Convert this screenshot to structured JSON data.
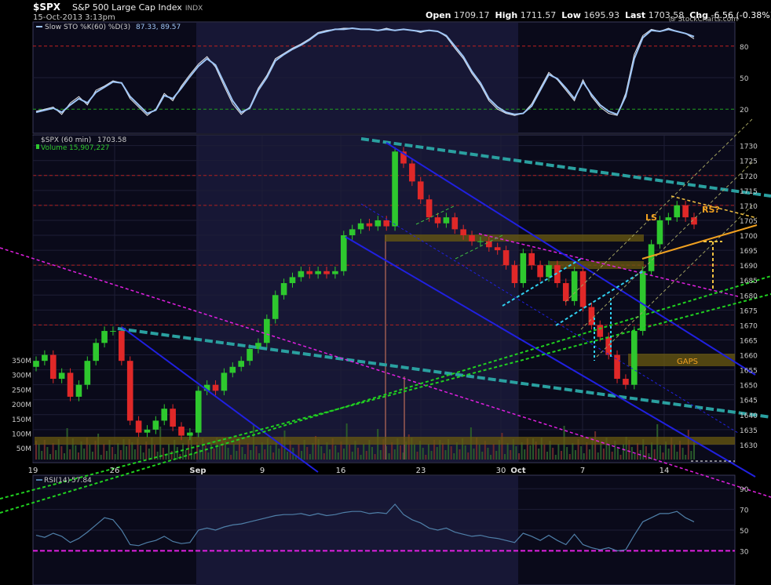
{
  "header": {
    "symbol": "$SPX",
    "name": "S&P 500 Large Cap Index",
    "exchange": "INDX",
    "datetime": "15-Oct-2013 3:13pm",
    "open_label": "Open",
    "open": "1709.17",
    "high_label": "High",
    "high": "1711.57",
    "low_label": "Low",
    "low": "1695.93",
    "last_label": "Last",
    "last": "1703.58",
    "chg_label": "Chg",
    "chg": "-6.56 (-0.38%)",
    "watermark": "@ StockCharts.com"
  },
  "colors": {
    "background": "#000000",
    "panel_bg": "#0a0a1a",
    "shade": "#171735",
    "up_candle": "#2ec82e",
    "down_candle": "#e02828",
    "sto_line": "#9fc5f5",
    "rsi_line": "#4f7fa8",
    "magenta": "#e020e0",
    "teal": "#2aa0a0",
    "blue": "#2020e0",
    "cyan": "#30d0f0",
    "green_dash": "#20d020",
    "orange": "#f0a020",
    "olive_band": "#6a5a10"
  },
  "chart_data": [
    {
      "panel": "stochastic",
      "type": "line",
      "legend": "Slow STO %K(60) %D(3)",
      "legend_values": "87.33, 89.57",
      "y_ticks": [
        80,
        50,
        20
      ],
      "ylim": [
        0,
        100
      ],
      "reference_lines": [
        80,
        20
      ],
      "series": [
        {
          "name": "%K",
          "values": [
            18,
            20,
            22,
            15,
            26,
            32,
            24,
            38,
            42,
            47,
            45,
            30,
            22,
            14,
            20,
            35,
            28,
            42,
            53,
            63,
            70,
            60,
            42,
            25,
            15,
            22,
            40,
            52,
            68,
            73,
            78,
            82,
            87,
            93,
            95,
            96,
            97,
            97,
            96,
            96,
            95,
            97,
            95,
            96,
            95,
            93,
            95,
            94,
            89,
            78,
            68,
            54,
            43,
            28,
            20,
            16,
            14,
            16,
            25,
            40,
            55,
            48,
            38,
            28,
            48,
            32,
            22,
            16,
            14,
            35,
            72,
            90,
            96,
            94,
            97,
            94,
            92,
            87
          ]
        },
        {
          "name": "%D",
          "values": [
            17,
            19,
            21,
            17,
            24,
            30,
            26,
            36,
            41,
            46,
            45,
            32,
            24,
            16,
            19,
            33,
            30,
            40,
            51,
            61,
            68,
            62,
            45,
            28,
            17,
            21,
            38,
            50,
            66,
            72,
            77,
            81,
            86,
            92,
            94,
            96,
            96,
            97,
            96,
            96,
            95,
            96,
            95,
            96,
            95,
            94,
            95,
            94,
            90,
            80,
            70,
            56,
            45,
            30,
            22,
            17,
            15,
            16,
            23,
            38,
            53,
            49,
            40,
            30,
            46,
            34,
            24,
            18,
            15,
            32,
            68,
            88,
            95,
            94,
            96,
            94,
            92,
            89
          ]
        }
      ]
    },
    {
      "panel": "price",
      "type": "line",
      "legend": "$SPX (60 min)",
      "legend_value": "1703.58",
      "volume_legend": "Volume",
      "volume_value": "15,907,227",
      "ylim": [
        1625,
        1732
      ],
      "y_ticks": [
        1730,
        1725,
        1720,
        1715,
        1710,
        1705,
        1700,
        1695,
        1690,
        1685,
        1680,
        1675,
        1670,
        1665,
        1660,
        1655,
        1650,
        1645,
        1640,
        1635,
        1630
      ],
      "volume_ticks": [
        "350M",
        "300M",
        "250M",
        "200M",
        "150M",
        "100M",
        "50M"
      ],
      "x_labels": [
        "19",
        "26",
        "Sep",
        "9",
        "16",
        "23",
        "30",
        "Oct",
        "7",
        "14"
      ],
      "series": [
        {
          "name": "$SPX",
          "values": [
            1658,
            1660,
            1652,
            1654,
            1646,
            1650,
            1658,
            1664,
            1668,
            1668,
            1658,
            1638,
            1634,
            1635,
            1638,
            1642,
            1636,
            1633,
            1634,
            1648,
            1650,
            1648,
            1654,
            1656,
            1658,
            1662,
            1664,
            1672,
            1680,
            1684,
            1686,
            1688,
            1687,
            1688,
            1687,
            1688,
            1700,
            1702,
            1704,
            1703,
            1705,
            1703,
            1728,
            1724,
            1718,
            1712,
            1706,
            1704,
            1706,
            1702,
            1700,
            1698,
            1698,
            1696,
            1695,
            1690,
            1684,
            1694,
            1690,
            1686,
            1690,
            1684,
            1678,
            1688,
            1676,
            1670,
            1666,
            1660,
            1652,
            1650,
            1668,
            1688,
            1697,
            1705,
            1706,
            1710,
            1706,
            1703.58
          ]
        }
      ],
      "annotations": [
        {
          "text": "LS",
          "x": "Oct 11",
          "y": 1704
        },
        {
          "text": "RS?",
          "x": "Oct 16",
          "y": 1708
        },
        {
          "text": "GAPS",
          "x": "Oct 15",
          "y": 1657
        }
      ]
    },
    {
      "panel": "rsi",
      "type": "line",
      "legend": "RSI(14)",
      "legend_value": "57.84",
      "ylim": [
        0,
        100
      ],
      "y_ticks": [
        90,
        70,
        50,
        30
      ],
      "reference_lines": [
        30
      ],
      "series": [
        {
          "name": "RSI(14)",
          "values": [
            45,
            43,
            47,
            44,
            38,
            42,
            48,
            55,
            62,
            60,
            50,
            36,
            35,
            38,
            40,
            44,
            39,
            37,
            38,
            50,
            52,
            50,
            53,
            55,
            56,
            58,
            60,
            62,
            64,
            65,
            65,
            66,
            64,
            66,
            64,
            65,
            67,
            68,
            68,
            66,
            67,
            66,
            75,
            65,
            60,
            57,
            52,
            50,
            52,
            48,
            46,
            44,
            45,
            43,
            42,
            40,
            38,
            47,
            44,
            40,
            45,
            40,
            36,
            46,
            36,
            33,
            31,
            33,
            30,
            31,
            45,
            58,
            62,
            66,
            66,
            68,
            62,
            58
          ]
        }
      ]
    }
  ]
}
